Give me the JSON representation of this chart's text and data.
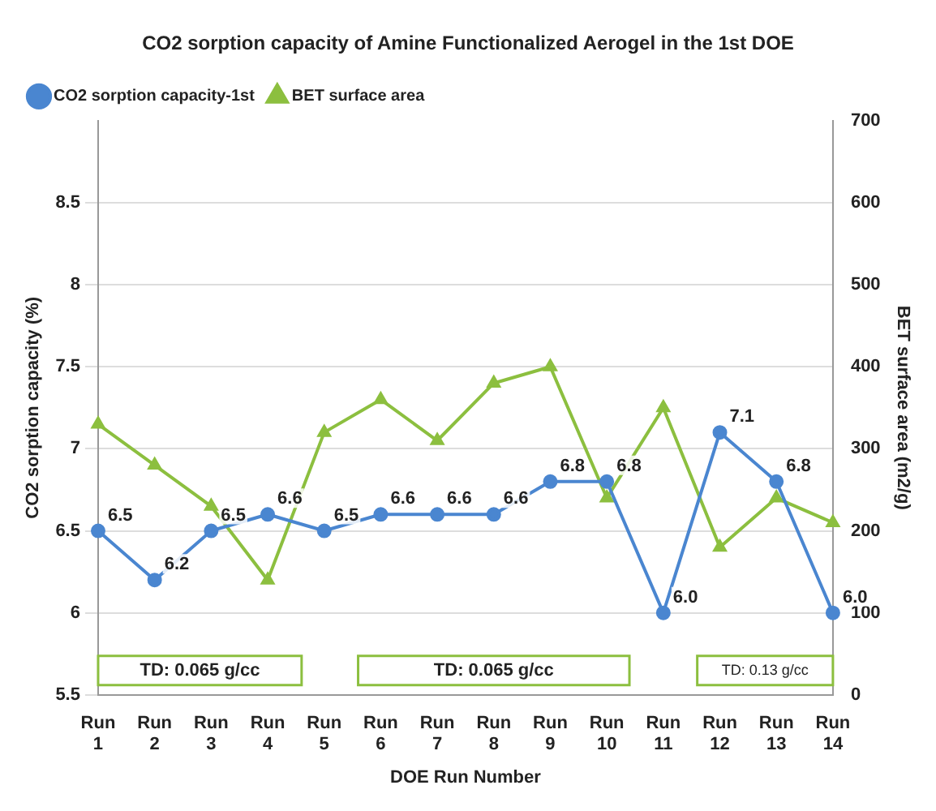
{
  "chart_data": {
    "type": "line",
    "title": "CO2 sorption capacity of Amine Functionalized Aerogel in the 1st DOE",
    "xlabel": "DOE Run Number",
    "ylabel": "CO2 sorption capacity (%)",
    "y2label": "BET surface area (m2/g)",
    "categories": [
      "Run 1",
      "Run 2",
      "Run 3",
      "Run 4",
      "Run 5",
      "Run 6",
      "Run 7",
      "Run 8",
      "Run 9",
      "Run 10",
      "Run 11",
      "Run 12",
      "Run 13",
      "Run 14"
    ],
    "series": [
      {
        "name": "CO2 sorption capacity-1st",
        "color": "#4a86d0",
        "marker": "circle",
        "value_labels": [
          "6.5",
          "6.2",
          "6.5",
          "6.6",
          "6.5",
          "6.6",
          "6.6",
          "6.6",
          "6.8",
          "6.8",
          "6.0",
          "7.1",
          "6.8",
          "6.0"
        ],
        "values": [
          6.5,
          6.2,
          6.5,
          6.6,
          6.5,
          6.6,
          6.6,
          6.6,
          6.8,
          6.8,
          6.0,
          7.1,
          6.8,
          6.0
        ]
      },
      {
        "name": "BET surface area",
        "color": "#8cbf3f",
        "marker": "triangle",
        "axis": "y2",
        "values": [
          330,
          280,
          230,
          140,
          320,
          360,
          310,
          380,
          400,
          240,
          350,
          180,
          240,
          210
        ]
      }
    ],
    "ylim": [
      5.5,
      9
    ],
    "yticks": [
      5.5,
      6,
      6.5,
      7,
      7.5,
      8,
      8.5
    ],
    "y2lim": [
      0,
      700
    ],
    "y2ticks": [
      0,
      100,
      200,
      300,
      400,
      500,
      600,
      700
    ],
    "grid": "y",
    "legend": "top left",
    "annotations": [
      "TD: 0.065 g/cc",
      "TD: 0.065 g/cc",
      "TD: 0.13 g/cc"
    ]
  }
}
